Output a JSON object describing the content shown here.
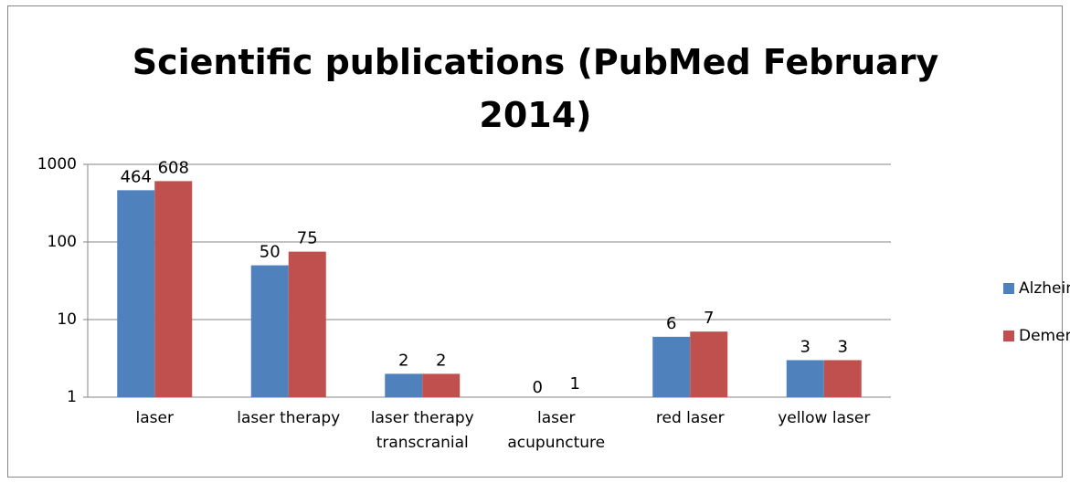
{
  "chart_data": {
    "type": "bar",
    "title": "Scientific publications (PubMed February 2014)",
    "categories": [
      "laser",
      "laser therapy",
      "laser therapy transcranial",
      "laser acupuncture",
      "red laser",
      "yellow laser"
    ],
    "series": [
      {
        "name": "Alzheimer",
        "color": "#4f81bd",
        "values": [
          464,
          50,
          2,
          0,
          6,
          3
        ]
      },
      {
        "name": "Dementia",
        "color": "#c0504d",
        "values": [
          608,
          75,
          2,
          1,
          7,
          3
        ]
      }
    ],
    "ylim": [
      1,
      1000
    ],
    "yticks": [
      1,
      10,
      100,
      1000
    ],
    "log_scale": true,
    "grid": true,
    "legend": "right"
  }
}
